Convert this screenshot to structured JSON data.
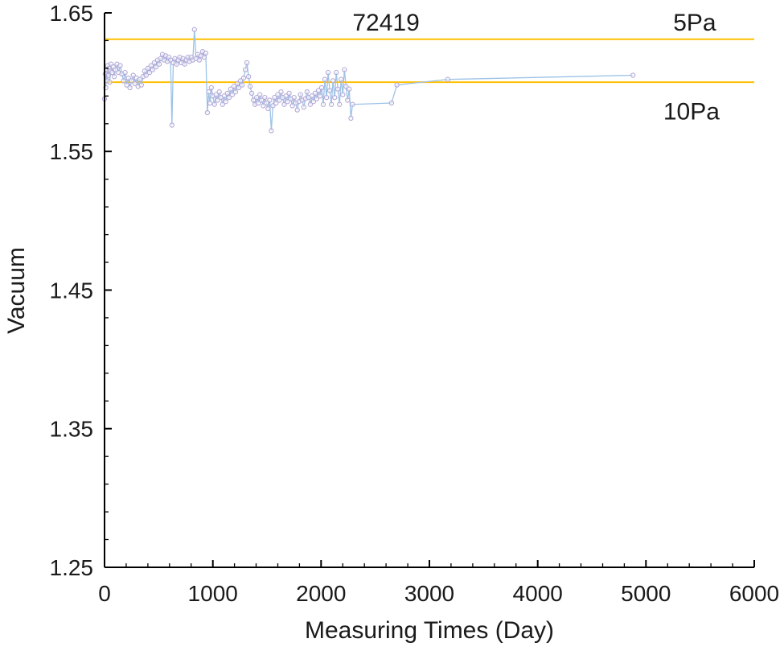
{
  "chart_data": {
    "type": "line",
    "title": "",
    "series_label": "72419",
    "xlabel": "Measuring Times (Day)",
    "ylabel": "Vacuum",
    "xlim": [
      0,
      6000
    ],
    "ylim": [
      1.25,
      1.65
    ],
    "x_ticks": [
      0,
      1000,
      2000,
      3000,
      4000,
      5000,
      6000
    ],
    "y_ticks": [
      1.25,
      1.35,
      1.45,
      1.55,
      1.65
    ],
    "x_minor_step": 200,
    "y_minor_step": 0.02,
    "grid": false,
    "legend": "none",
    "colors": {
      "series_line": "#9dc3e6",
      "marker": "#b4a7d6",
      "reference": "#ffc000",
      "axis": "#000000",
      "text": "#1a1a1a"
    },
    "reference_lines": [
      {
        "label": "5Pa",
        "y": 1.631
      },
      {
        "label": "10Pa",
        "y": 1.6
      }
    ],
    "annotations": [
      {
        "text": "72419",
        "x": 2600,
        "y": 1.643
      },
      {
        "text": "5Pa",
        "x": 5450,
        "y": 1.643
      },
      {
        "text": "10Pa",
        "x": 5420,
        "y": 1.579
      }
    ],
    "points": [
      [
        0,
        1.588
      ],
      [
        6,
        1.606
      ],
      [
        12,
        1.596
      ],
      [
        18,
        1.609
      ],
      [
        24,
        1.601
      ],
      [
        30,
        1.612
      ],
      [
        36,
        1.605
      ],
      [
        42,
        1.61
      ],
      [
        48,
        1.6
      ],
      [
        54,
        1.608
      ],
      [
        60,
        1.613
      ],
      [
        70,
        1.607
      ],
      [
        80,
        1.611
      ],
      [
        90,
        1.604
      ],
      [
        100,
        1.609
      ],
      [
        115,
        1.613
      ],
      [
        130,
        1.607
      ],
      [
        145,
        1.612
      ],
      [
        160,
        1.606
      ],
      [
        175,
        1.601
      ],
      [
        190,
        1.607
      ],
      [
        205,
        1.598
      ],
      [
        220,
        1.603
      ],
      [
        235,
        1.596
      ],
      [
        250,
        1.601
      ],
      [
        265,
        1.605
      ],
      [
        280,
        1.599
      ],
      [
        295,
        1.603
      ],
      [
        310,
        1.597
      ],
      [
        325,
        1.602
      ],
      [
        340,
        1.598
      ],
      [
        355,
        1.604
      ],
      [
        370,
        1.608
      ],
      [
        385,
        1.605
      ],
      [
        400,
        1.61
      ],
      [
        415,
        1.607
      ],
      [
        430,
        1.612
      ],
      [
        445,
        1.609
      ],
      [
        460,
        1.614
      ],
      [
        475,
        1.611
      ],
      [
        490,
        1.616
      ],
      [
        505,
        1.613
      ],
      [
        520,
        1.617
      ],
      [
        535,
        1.62
      ],
      [
        550,
        1.616
      ],
      [
        565,
        1.619
      ],
      [
        580,
        1.615
      ],
      [
        595,
        1.618
      ],
      [
        610,
        1.616
      ],
      [
        622,
        1.569
      ],
      [
        635,
        1.614
      ],
      [
        650,
        1.617
      ],
      [
        665,
        1.613
      ],
      [
        680,
        1.616
      ],
      [
        695,
        1.618
      ],
      [
        710,
        1.614
      ],
      [
        725,
        1.617
      ],
      [
        740,
        1.613
      ],
      [
        755,
        1.616
      ],
      [
        770,
        1.618
      ],
      [
        785,
        1.615
      ],
      [
        800,
        1.618
      ],
      [
        815,
        1.616
      ],
      [
        830,
        1.638
      ],
      [
        845,
        1.617
      ],
      [
        860,
        1.62
      ],
      [
        875,
        1.616
      ],
      [
        890,
        1.619
      ],
      [
        905,
        1.622
      ],
      [
        920,
        1.618
      ],
      [
        935,
        1.621
      ],
      [
        950,
        1.578
      ],
      [
        962,
        1.593
      ],
      [
        974,
        1.585
      ],
      [
        986,
        1.596
      ],
      [
        1000,
        1.59
      ],
      [
        1015,
        1.584
      ],
      [
        1030,
        1.591
      ],
      [
        1045,
        1.587
      ],
      [
        1060,
        1.593
      ],
      [
        1075,
        1.589
      ],
      [
        1090,
        1.584
      ],
      [
        1105,
        1.59
      ],
      [
        1120,
        1.586
      ],
      [
        1135,
        1.592
      ],
      [
        1150,
        1.589
      ],
      [
        1165,
        1.595
      ],
      [
        1180,
        1.591
      ],
      [
        1195,
        1.597
      ],
      [
        1210,
        1.593
      ],
      [
        1225,
        1.599
      ],
      [
        1240,
        1.596
      ],
      [
        1255,
        1.601
      ],
      [
        1270,
        1.598
      ],
      [
        1285,
        1.603
      ],
      [
        1300,
        1.609
      ],
      [
        1315,
        1.614
      ],
      [
        1330,
        1.604
      ],
      [
        1345,
        1.597
      ],
      [
        1360,
        1.592
      ],
      [
        1375,
        1.587
      ],
      [
        1390,
        1.584
      ],
      [
        1405,
        1.589
      ],
      [
        1420,
        1.585
      ],
      [
        1435,
        1.591
      ],
      [
        1450,
        1.587
      ],
      [
        1465,
        1.583
      ],
      [
        1480,
        1.589
      ],
      [
        1495,
        1.585
      ],
      [
        1510,
        1.581
      ],
      [
        1525,
        1.587
      ],
      [
        1540,
        1.565
      ],
      [
        1555,
        1.583
      ],
      [
        1570,
        1.589
      ],
      [
        1585,
        1.585
      ],
      [
        1600,
        1.591
      ],
      [
        1615,
        1.587
      ],
      [
        1630,
        1.593
      ],
      [
        1645,
        1.589
      ],
      [
        1660,
        1.584
      ],
      [
        1675,
        1.59
      ],
      [
        1690,
        1.586
      ],
      [
        1705,
        1.592
      ],
      [
        1720,
        1.588
      ],
      [
        1735,
        1.583
      ],
      [
        1750,
        1.589
      ],
      [
        1765,
        1.585
      ],
      [
        1780,
        1.58
      ],
      [
        1795,
        1.586
      ],
      [
        1810,
        1.591
      ],
      [
        1825,
        1.587
      ],
      [
        1840,
        1.582
      ],
      [
        1855,
        1.588
      ],
      [
        1870,
        1.593
      ],
      [
        1885,
        1.589
      ],
      [
        1900,
        1.584
      ],
      [
        1915,
        1.59
      ],
      [
        1930,
        1.586
      ],
      [
        1945,
        1.592
      ],
      [
        1960,
        1.588
      ],
      [
        1975,
        1.594
      ],
      [
        1990,
        1.59
      ],
      [
        2005,
        1.596
      ],
      [
        2020,
        1.584
      ],
      [
        2035,
        1.602
      ],
      [
        2050,
        1.589
      ],
      [
        2065,
        1.607
      ],
      [
        2080,
        1.594
      ],
      [
        2095,
        1.584
      ],
      [
        2110,
        1.601
      ],
      [
        2125,
        1.589
      ],
      [
        2140,
        1.607
      ],
      [
        2155,
        1.595
      ],
      [
        2170,
        1.584
      ],
      [
        2185,
        1.602
      ],
      [
        2200,
        1.591
      ],
      [
        2215,
        1.609
      ],
      [
        2230,
        1.597
      ],
      [
        2245,
        1.587
      ],
      [
        2260,
        1.595
      ],
      [
        2275,
        1.574
      ],
      [
        2290,
        1.584
      ],
      [
        2650,
        1.585
      ],
      [
        2700,
        1.598
      ],
      [
        3170,
        1.602
      ],
      [
        4880,
        1.605
      ]
    ]
  }
}
